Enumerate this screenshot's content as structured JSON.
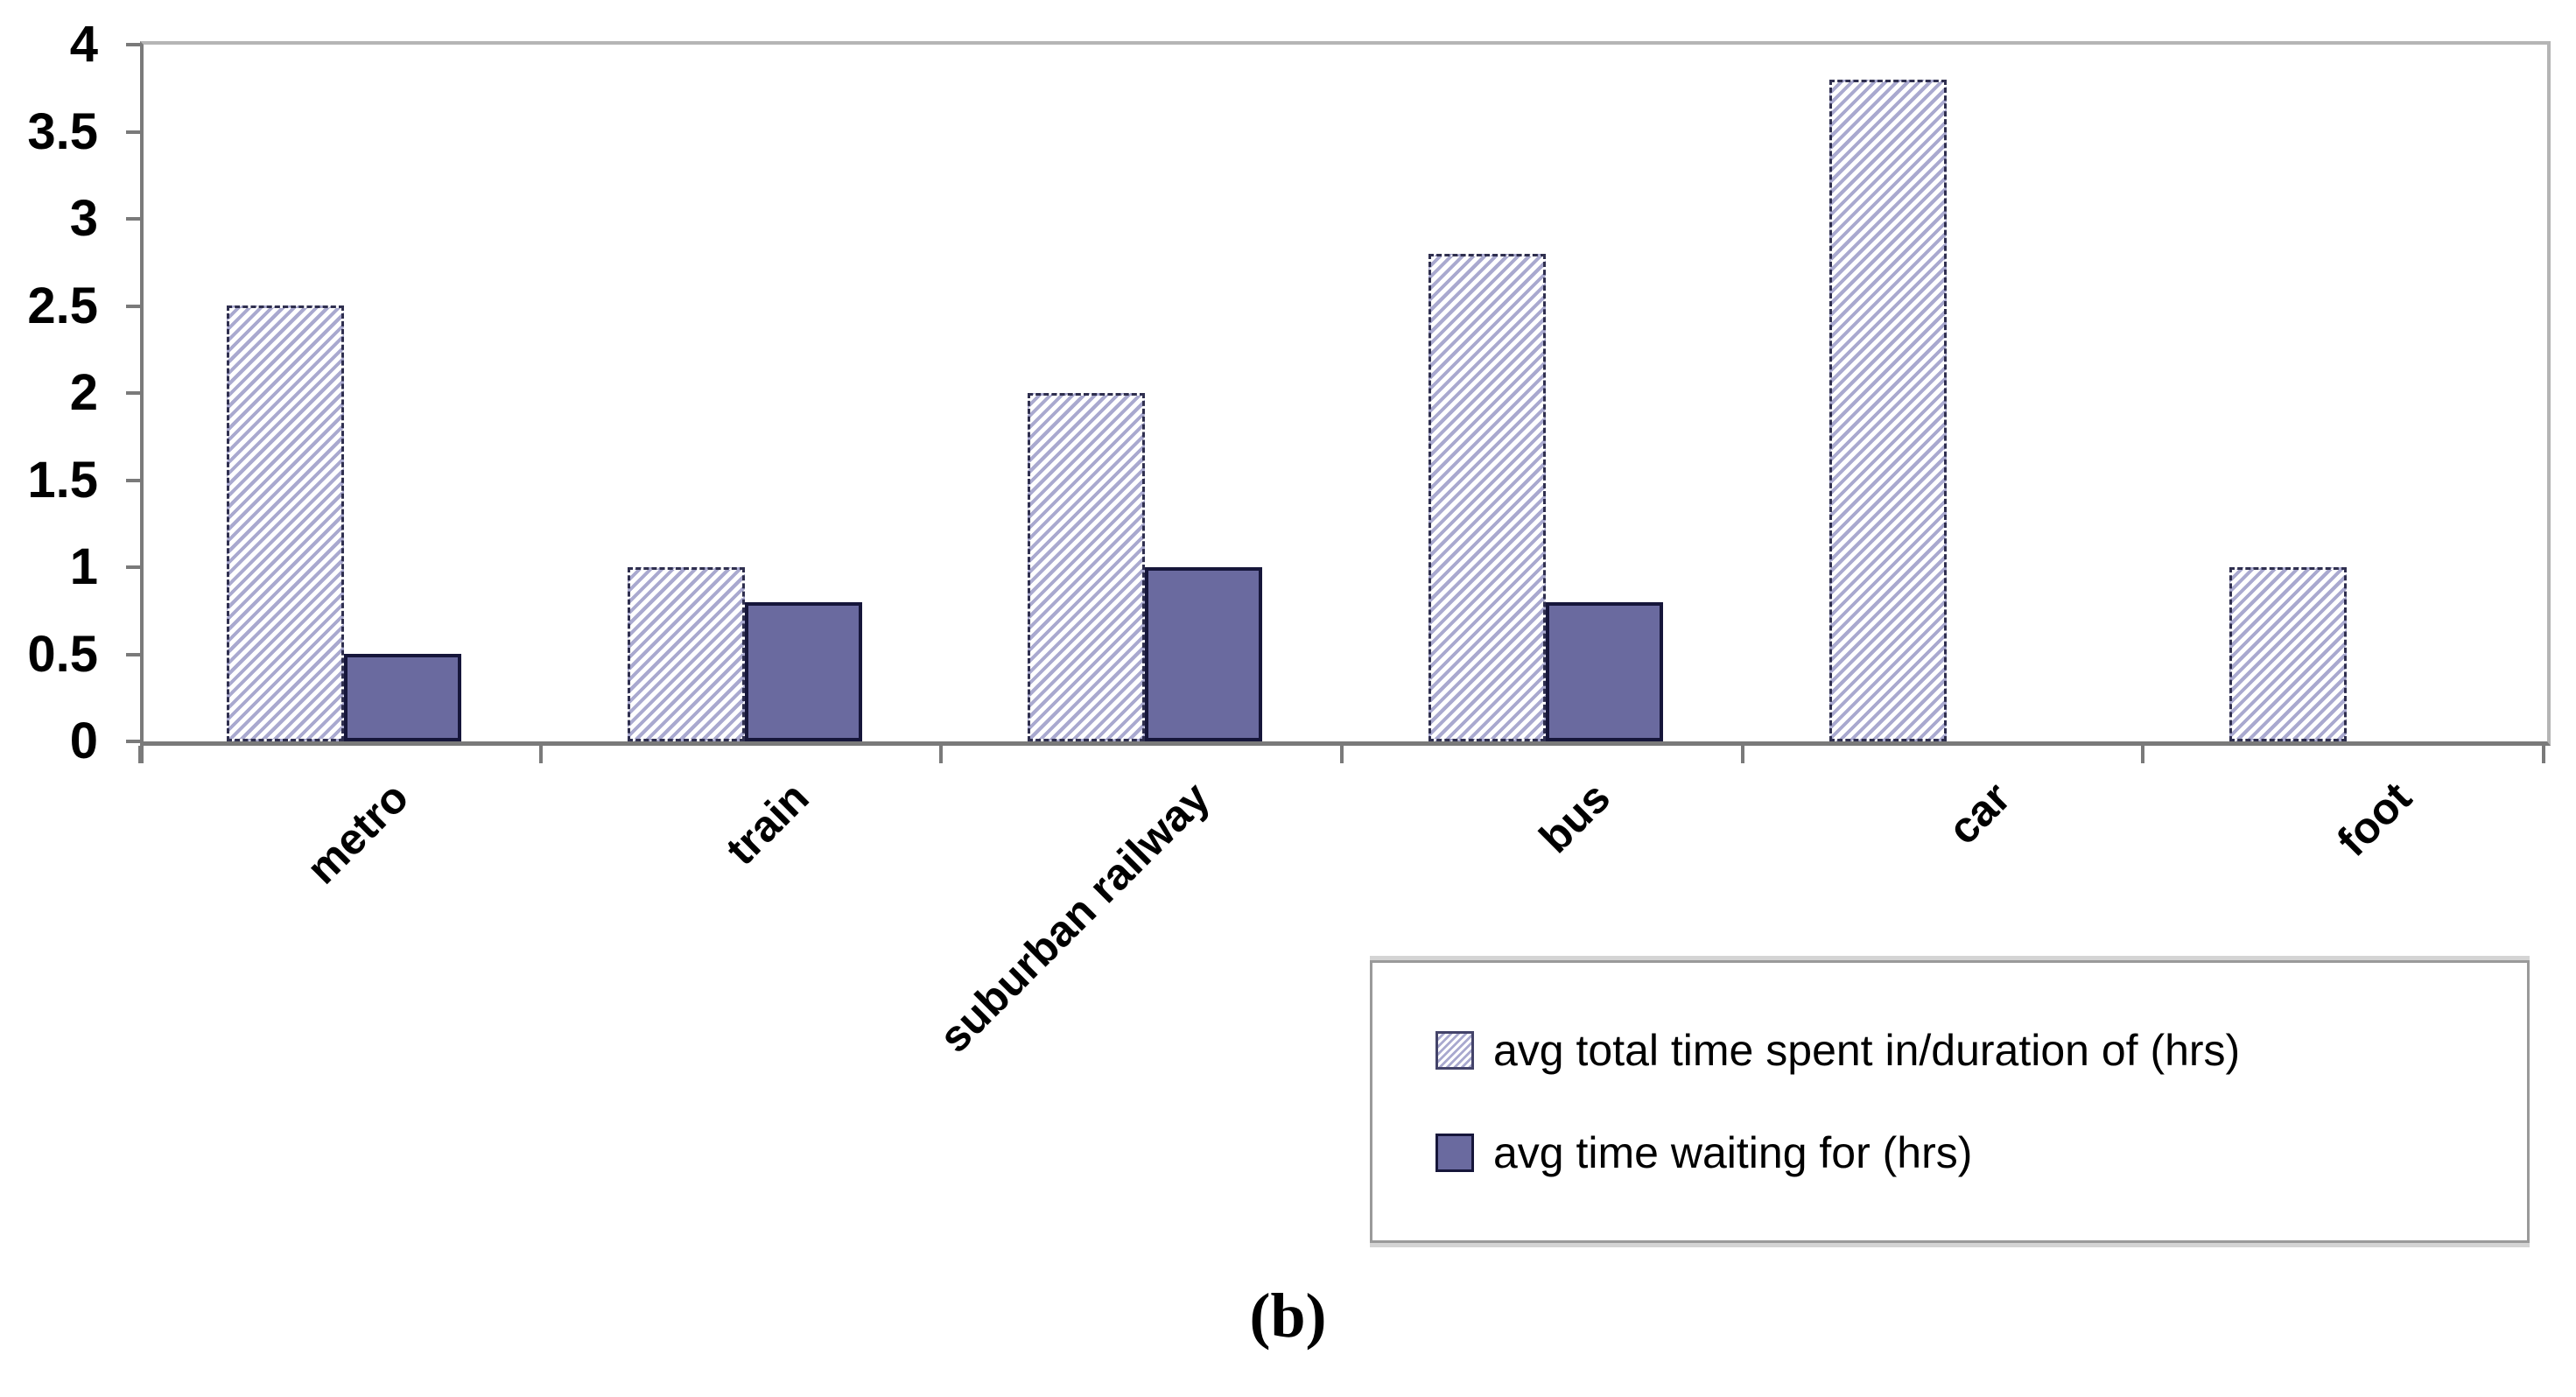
{
  "figure": {
    "caption": "(b)"
  },
  "chart_data": {
    "type": "bar",
    "categories": [
      "metro",
      "train",
      "suburban railway",
      "bus",
      "car",
      "foot"
    ],
    "series": [
      {
        "name": "avg total time spent in/duration of (hrs)",
        "style": "hatched",
        "values": [
          2.5,
          1.0,
          2.0,
          2.8,
          3.8,
          1.0
        ]
      },
      {
        "name": "avg time waiting for (hrs)",
        "style": "solid",
        "values": [
          0.5,
          0.8,
          1.0,
          0.8,
          0,
          0
        ]
      }
    ],
    "title": "",
    "xlabel": "",
    "ylabel": "",
    "ylim": [
      0,
      4
    ],
    "yticks": [
      0,
      0.5,
      1,
      1.5,
      2,
      2.5,
      3,
      3.5,
      4
    ],
    "grid": false,
    "legend_position": "bottom-right",
    "colors": {
      "hatch_stripe": "#a9a9cf",
      "hatch_bg": "#ffffff",
      "hatch_border": "#2f2f4f",
      "solid_fill": "#6a6a9f",
      "solid_border": "#16163a",
      "axis_line": "#7a7a7a",
      "plot_border": "#b5b5b5",
      "legend_border": "#9a9a9a",
      "text": "#000000"
    }
  }
}
